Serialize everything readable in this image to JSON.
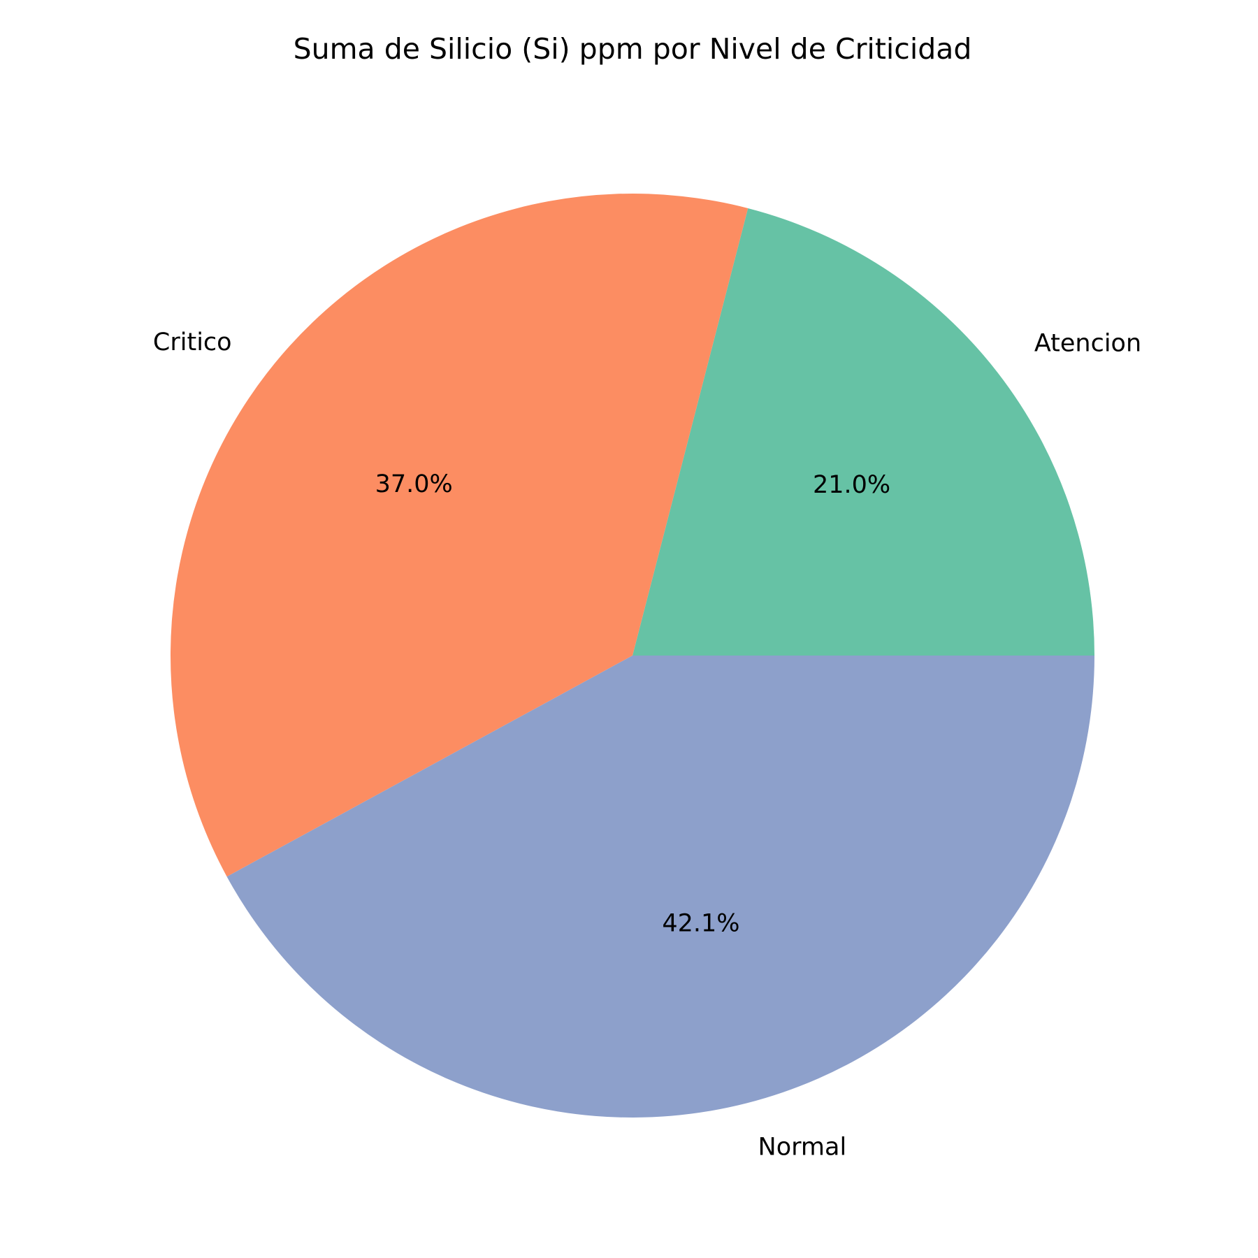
{
  "chart_data": {
    "type": "pie",
    "title": "Suma de Silicio (Si) ppm por Nivel de Criticidad",
    "categories": [
      "Atencion",
      "Critico",
      "Normal"
    ],
    "values": [
      21.0,
      37.0,
      42.1
    ],
    "percent_labels": [
      "21.0%",
      "37.0%",
      "42.1%"
    ],
    "colors": [
      "#66c2a5",
      "#fc8d62",
      "#8da0cb"
    ],
    "start_angle_deg": 0,
    "direction": "counterclockwise",
    "legend": "none"
  }
}
